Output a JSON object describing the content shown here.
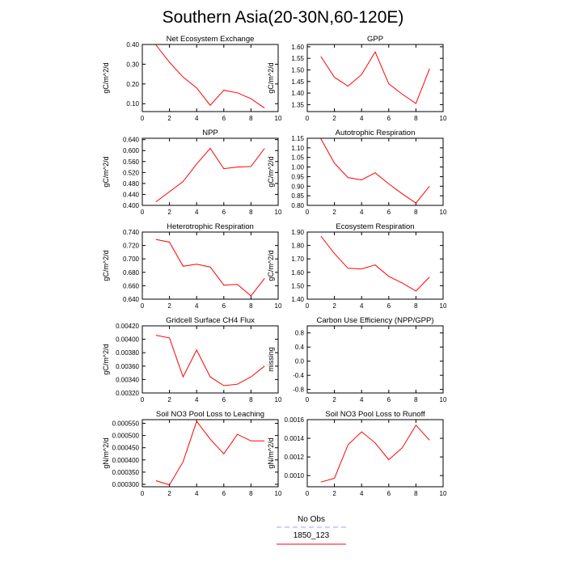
{
  "title": "Southern Asia(20-30N,60-120E)",
  "legend": [
    {
      "label": "No Obs",
      "color": "#a0a0ff",
      "style": "dashed"
    },
    {
      "label": "1850_123",
      "color": "#ff0000",
      "style": "solid"
    }
  ],
  "chart_data": [
    {
      "type": "line",
      "title": "Net Ecosystem Exchange",
      "ylabel": "gC/m^2/d",
      "xlim": [
        0,
        10
      ],
      "xticks": [
        0,
        2,
        4,
        6,
        8,
        10
      ],
      "ylim": [
        0.06,
        0.4
      ],
      "yticks": [
        0.1,
        0.2,
        0.3,
        0.4
      ],
      "ytick_labels": [
        "0.10",
        "0.20",
        "0.30",
        "0.40"
      ],
      "series": [
        {
          "color": "#ff0000",
          "x": [
            1,
            2,
            3,
            4,
            5,
            6,
            7,
            8,
            9
          ],
          "y": [
            0.398,
            0.31,
            0.235,
            0.18,
            0.092,
            0.168,
            0.155,
            0.125,
            0.078
          ]
        }
      ]
    },
    {
      "type": "line",
      "title": "GPP",
      "ylabel": "gC/m^2/d",
      "xlim": [
        0,
        10
      ],
      "xticks": [
        0,
        2,
        4,
        6,
        8,
        10
      ],
      "ylim": [
        1.32,
        1.61
      ],
      "yticks": [
        1.35,
        1.4,
        1.45,
        1.5,
        1.55,
        1.6
      ],
      "ytick_labels": [
        "1.35",
        "1.40",
        "1.45",
        "1.50",
        "1.55",
        "1.60"
      ],
      "series": [
        {
          "color": "#ff0000",
          "x": [
            1,
            2,
            3,
            4,
            5,
            6,
            7,
            8,
            9
          ],
          "y": [
            1.558,
            1.468,
            1.43,
            1.48,
            1.578,
            1.44,
            1.395,
            1.355,
            1.505
          ]
        }
      ]
    },
    {
      "type": "line",
      "title": "NPP",
      "ylabel": "gC/m^2/d",
      "xlim": [
        0,
        10
      ],
      "xticks": [
        0,
        2,
        4,
        6,
        8,
        10
      ],
      "ylim": [
        0.4,
        0.645
      ],
      "yticks": [
        0.4,
        0.44,
        0.48,
        0.52,
        0.56,
        0.6,
        0.64
      ],
      "ytick_labels": [
        "0.400",
        "0.440",
        "0.480",
        "0.520",
        "0.560",
        "0.600",
        "0.640"
      ],
      "series": [
        {
          "color": "#ff0000",
          "x": [
            1,
            2,
            3,
            4,
            5,
            6,
            7,
            8,
            9
          ],
          "y": [
            0.413,
            0.45,
            0.487,
            0.551,
            0.608,
            0.534,
            0.54,
            0.542,
            0.608
          ]
        }
      ]
    },
    {
      "type": "line",
      "title": "Autotrophic Respiration",
      "ylabel": "gC/m^2/d",
      "xlim": [
        0,
        10
      ],
      "xticks": [
        0,
        2,
        4,
        6,
        8,
        10
      ],
      "ylim": [
        0.8,
        1.15
      ],
      "yticks": [
        0.8,
        0.85,
        0.9,
        0.95,
        1.0,
        1.05,
        1.1,
        1.15
      ],
      "ytick_labels": [
        "0.80",
        "0.85",
        "0.90",
        "0.95",
        "1.00",
        "1.05",
        "1.10",
        "1.15"
      ],
      "series": [
        {
          "color": "#ff0000",
          "x": [
            1,
            2,
            3,
            4,
            5,
            6,
            7,
            8,
            9
          ],
          "y": [
            1.148,
            1.02,
            0.945,
            0.933,
            0.97,
            0.912,
            0.86,
            0.812,
            0.9
          ]
        }
      ]
    },
    {
      "type": "line",
      "title": "Heterotrophic Respiration",
      "ylabel": "gC/m^2/d",
      "xlim": [
        0,
        10
      ],
      "xticks": [
        0,
        2,
        4,
        6,
        8,
        10
      ],
      "ylim": [
        0.64,
        0.74
      ],
      "yticks": [
        0.64,
        0.66,
        0.68,
        0.7,
        0.72,
        0.74
      ],
      "ytick_labels": [
        "0.640",
        "0.660",
        "0.680",
        "0.700",
        "0.720",
        "0.740"
      ],
      "series": [
        {
          "color": "#ff0000",
          "x": [
            1,
            2,
            3,
            4,
            5,
            6,
            7,
            8,
            9
          ],
          "y": [
            0.729,
            0.725,
            0.689,
            0.692,
            0.688,
            0.661,
            0.662,
            0.645,
            0.671
          ]
        }
      ]
    },
    {
      "type": "line",
      "title": "Ecosystem Respiration",
      "ylabel": "gC/m^2/d",
      "xlim": [
        0,
        10
      ],
      "xticks": [
        0,
        2,
        4,
        6,
        8,
        10
      ],
      "ylim": [
        1.4,
        1.9
      ],
      "yticks": [
        1.4,
        1.5,
        1.6,
        1.7,
        1.8,
        1.9
      ],
      "ytick_labels": [
        "1.40",
        "1.50",
        "1.60",
        "1.70",
        "1.80",
        "1.90"
      ],
      "series": [
        {
          "color": "#ff0000",
          "x": [
            1,
            2,
            3,
            4,
            5,
            6,
            7,
            8,
            9
          ],
          "y": [
            1.87,
            1.74,
            1.63,
            1.625,
            1.655,
            1.57,
            1.52,
            1.46,
            1.565
          ]
        }
      ]
    },
    {
      "type": "line",
      "title": "Gridcell Surface CH4 Flux",
      "ylabel": "gC/m^2/d",
      "xlim": [
        0,
        10
      ],
      "xticks": [
        0,
        2,
        4,
        6,
        8,
        10
      ],
      "ylim": [
        0.0032,
        0.0042
      ],
      "yticks": [
        0.0032,
        0.0034,
        0.0036,
        0.0038,
        0.004,
        0.0042
      ],
      "ytick_labels": [
        "0.00320",
        "0.00340",
        "0.00360",
        "0.00380",
        "0.00400",
        "0.00420"
      ],
      "series": [
        {
          "color": "#ff0000",
          "x": [
            1,
            2,
            3,
            4,
            5,
            6,
            7,
            8,
            9
          ],
          "y": [
            0.00406,
            0.00402,
            0.00344,
            0.00384,
            0.00344,
            0.00331,
            0.00333,
            0.00344,
            0.0036
          ]
        }
      ]
    },
    {
      "type": "line",
      "title": "Carbon Use Efficiency (NPP/GPP)",
      "ylabel": "missing",
      "xlim": [
        0,
        10
      ],
      "xticks": [
        0,
        2,
        4,
        6,
        8,
        10
      ],
      "ylim": [
        -0.9,
        1.0
      ],
      "yticks": [
        -0.8,
        -0.4,
        0.0,
        0.4,
        0.8
      ],
      "ytick_labels": [
        "-0.8",
        "-0.4",
        "0.0",
        "0.4",
        "0.8"
      ],
      "series": []
    },
    {
      "type": "line",
      "title": "Soil NO3 Pool Loss to Leaching",
      "ylabel": "gN/m^2/d",
      "xlim": [
        0,
        10
      ],
      "xticks": [
        0,
        2,
        4,
        6,
        8,
        10
      ],
      "ylim": [
        0.00029,
        0.000565
      ],
      "yticks": [
        0.0003,
        0.00035,
        0.0004,
        0.00045,
        0.0005,
        0.00055
      ],
      "ytick_labels": [
        "0.000300",
        "0.000350",
        "0.000400",
        "0.000450",
        "0.000500",
        "0.000550"
      ],
      "series": [
        {
          "color": "#ff0000",
          "x": [
            1,
            2,
            3,
            4,
            5,
            6,
            7,
            8,
            9
          ],
          "y": [
            0.000315,
            0.000298,
            0.000392,
            0.000558,
            0.000485,
            0.000425,
            0.000505,
            0.000478,
            0.000478
          ]
        }
      ]
    },
    {
      "type": "line",
      "title": "Soil NO3 Pool Loss to Runoff",
      "ylabel": "gN/m^2/d",
      "xlim": [
        0,
        10
      ],
      "xticks": [
        0,
        2,
        4,
        6,
        8,
        10
      ],
      "ylim": [
        0.00088,
        0.0016
      ],
      "yticks": [
        0.001,
        0.0012,
        0.0014,
        0.0016
      ],
      "ytick_labels": [
        "0.0010",
        "0.0012",
        "0.0014",
        "0.0016"
      ],
      "series": [
        {
          "color": "#ff0000",
          "x": [
            1,
            2,
            3,
            4,
            5,
            6,
            7,
            8,
            9
          ],
          "y": [
            0.00093,
            0.00097,
            0.00133,
            0.00147,
            0.00135,
            0.00117,
            0.0013,
            0.00154,
            0.00138
          ]
        }
      ]
    }
  ]
}
